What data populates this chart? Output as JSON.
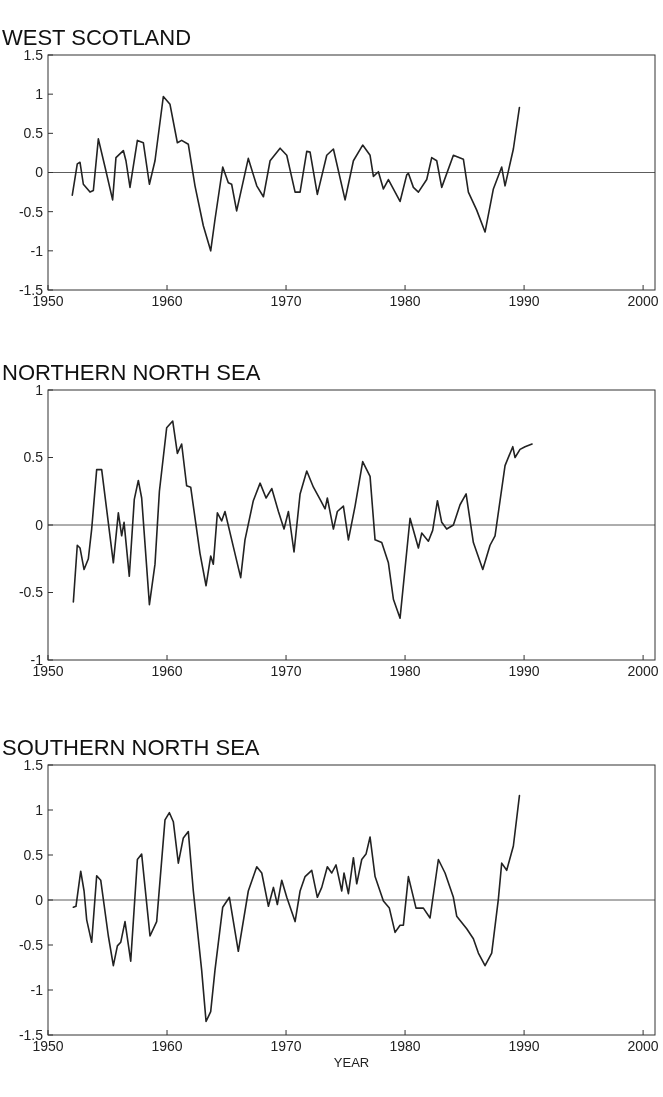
{
  "chart_data": [
    {
      "type": "line",
      "title": "WEST SCOTLAND",
      "xlim": [
        1950,
        2001
      ],
      "xticks": [
        1950,
        1960,
        1970,
        1980,
        1990,
        2000
      ],
      "ylim": [
        -1.5,
        1.5
      ],
      "yticks": [
        -1.5,
        -1,
        -0.5,
        0,
        0.5,
        1,
        1.5
      ],
      "ref_lines": [
        {
          "axis": "y",
          "value": 0
        }
      ],
      "x": [
        1952.04,
        1952.46,
        1952.69,
        1952.97,
        1953.53,
        1953.81,
        1954.23,
        1954.79,
        1955.43,
        1955.71,
        1956.33,
        1956.55,
        1956.89,
        1957.51,
        1958.01,
        1958.52,
        1958.99,
        1959.69,
        1960.25,
        1960.87,
        1961.23,
        1961.79,
        1962.35,
        1963.05,
        1963.67,
        1964.03,
        1964.68,
        1965.15,
        1965.43,
        1965.85,
        1966.83,
        1967.54,
        1968.1,
        1968.66,
        1969.5,
        1970.06,
        1970.76,
        1971.18,
        1971.74,
        1972.02,
        1972.63,
        1973.42,
        1973.98,
        1974.96,
        1975.66,
        1976.44,
        1977.06,
        1977.34,
        1977.76,
        1978.18,
        1978.6,
        1979.58,
        1980.14,
        1980.28,
        1980.7,
        1981.12,
        1981.82,
        1982.24,
        1982.66,
        1983.08,
        1984.06,
        1984.9,
        1985.32,
        1986.02,
        1986.72,
        1987.42,
        1988.12,
        1988.4,
        1989.1,
        1989.61
      ],
      "series": [
        {
          "color": "#222222",
          "values": [
            -0.29,
            0.11,
            0.13,
            -0.15,
            -0.25,
            -0.23,
            0.43,
            0.07,
            -0.35,
            0.19,
            0.28,
            0.15,
            -0.19,
            0.41,
            0.38,
            -0.15,
            0.15,
            0.97,
            0.87,
            0.38,
            0.41,
            0.36,
            -0.17,
            -0.68,
            -1.0,
            -0.6,
            0.07,
            -0.13,
            -0.15,
            -0.49,
            0.18,
            -0.17,
            -0.31,
            0.15,
            0.31,
            0.22,
            -0.25,
            -0.25,
            0.27,
            0.26,
            -0.28,
            0.22,
            0.3,
            -0.35,
            0.15,
            0.35,
            0.22,
            -0.05,
            0.01,
            -0.21,
            -0.09,
            -0.37,
            -0.03,
            -0.01,
            -0.19,
            -0.25,
            -0.09,
            0.19,
            0.15,
            -0.19,
            0.22,
            0.17,
            -0.25,
            -0.48,
            -0.76,
            -0.21,
            0.07,
            -0.17,
            0.3,
            0.83
          ]
        }
      ]
    },
    {
      "type": "line",
      "title": "NORTHERN NORTH SEA",
      "xlim": [
        1950,
        2001
      ],
      "xticks": [
        1950,
        1960,
        1970,
        1980,
        1990,
        2000
      ],
      "ylim": [
        -1,
        1
      ],
      "yticks": [
        -1,
        -0.5,
        0,
        0.5,
        1
      ],
      "ref_lines": [
        {
          "axis": "y",
          "value": 0
        }
      ],
      "x": [
        1952.13,
        1952.46,
        1952.69,
        1953.03,
        1953.39,
        1953.67,
        1954.09,
        1954.51,
        1955.49,
        1955.91,
        1956.19,
        1956.39,
        1956.83,
        1957.25,
        1957.59,
        1957.87,
        1958.52,
        1958.99,
        1959.36,
        1959.97,
        1960.48,
        1960.87,
        1961.23,
        1961.65,
        1961.99,
        1962.77,
        1963.28,
        1963.67,
        1963.89,
        1964.23,
        1964.59,
        1964.87,
        1965.57,
        1966.19,
        1966.55,
        1967.25,
        1967.82,
        1968.32,
        1968.8,
        1969.36,
        1969.83,
        1970.2,
        1970.67,
        1971.18,
        1971.74,
        1972.3,
        1972.86,
        1973.28,
        1973.47,
        1973.98,
        1974.31,
        1974.82,
        1975.24,
        1975.8,
        1976.44,
        1977.06,
        1977.48,
        1978.04,
        1978.6,
        1979.02,
        1979.58,
        1980.42,
        1981.12,
        1981.4,
        1981.96,
        1982.32,
        1982.72,
        1983.08,
        1983.5,
        1984.06,
        1984.62,
        1985.13,
        1985.74,
        1986.53,
        1987.14,
        1987.56,
        1988.4,
        1989.05,
        1989.24,
        1989.66,
        1990.08,
        1990.67
      ],
      "series": [
        {
          "color": "#222222",
          "values": [
            -0.57,
            -0.15,
            -0.17,
            -0.33,
            -0.25,
            -0.03,
            0.41,
            0.41,
            -0.28,
            0.09,
            -0.08,
            0.02,
            -0.38,
            0.19,
            0.33,
            0.2,
            -0.59,
            -0.29,
            0.25,
            0.72,
            0.77,
            0.53,
            0.6,
            0.29,
            0.28,
            -0.21,
            -0.45,
            -0.23,
            -0.29,
            0.09,
            0.03,
            0.1,
            -0.16,
            -0.39,
            -0.11,
            0.18,
            0.31,
            0.2,
            0.27,
            0.1,
            -0.03,
            0.1,
            -0.2,
            0.23,
            0.4,
            0.28,
            0.19,
            0.12,
            0.2,
            -0.03,
            0.1,
            0.14,
            -0.11,
            0.14,
            0.47,
            0.36,
            -0.11,
            -0.13,
            -0.28,
            -0.55,
            -0.69,
            0.05,
            -0.17,
            -0.06,
            -0.12,
            -0.04,
            0.18,
            0.02,
            -0.03,
            0,
            0.15,
            0.23,
            -0.13,
            -0.33,
            -0.15,
            -0.08,
            0.44,
            0.58,
            0.5,
            0.56,
            0.58,
            0.6
          ]
        }
      ]
    },
    {
      "type": "line",
      "title": "SOUTHERN NORTH SEA",
      "xlabel": "YEAR",
      "xlim": [
        1950,
        2001
      ],
      "xticks": [
        1950,
        1960,
        1970,
        1980,
        1990,
        2000
      ],
      "ylim": [
        -1.5,
        1.5
      ],
      "yticks": [
        -1.5,
        -1,
        -0.5,
        0,
        0.5,
        1,
        1.5
      ],
      "ref_lines": [
        {
          "axis": "y",
          "value": 0
        }
      ],
      "x": [
        1952.13,
        1952.35,
        1952.75,
        1953.03,
        1953.25,
        1953.67,
        1954.09,
        1954.43,
        1955.07,
        1955.49,
        1955.83,
        1956.11,
        1956.47,
        1956.95,
        1957.51,
        1957.87,
        1958.57,
        1959.13,
        1959.83,
        1960.2,
        1960.53,
        1960.95,
        1961.37,
        1961.79,
        1962.21,
        1962.91,
        1963.28,
        1963.67,
        1964.03,
        1964.68,
        1965.24,
        1965.99,
        1966.83,
        1967.54,
        1967.96,
        1968.52,
        1968.94,
        1969.27,
        1969.64,
        1970.06,
        1970.76,
        1971.18,
        1971.6,
        1972.16,
        1972.63,
        1973,
        1973.47,
        1973.84,
        1974.2,
        1974.68,
        1974.87,
        1975.24,
        1975.66,
        1975.94,
        1976.36,
        1976.72,
        1977.06,
        1977.48,
        1978.18,
        1978.68,
        1979.16,
        1979.58,
        1979.86,
        1980.28,
        1980.92,
        1981.54,
        1982.1,
        1982.8,
        1983.36,
        1984.06,
        1984.34,
        1985.18,
        1985.74,
        1986.16,
        1986.72,
        1987.28,
        1987.84,
        1988.12,
        1988.54,
        1989.1,
        1989.61
      ],
      "series": [
        {
          "color": "#222222",
          "values": [
            -0.08,
            -0.07,
            0.32,
            0.1,
            -0.22,
            -0.47,
            0.27,
            0.22,
            -0.4,
            -0.73,
            -0.51,
            -0.47,
            -0.24,
            -0.68,
            0.45,
            0.51,
            -0.4,
            -0.24,
            0.89,
            0.97,
            0.87,
            0.41,
            0.69,
            0.76,
            0.1,
            -0.78,
            -1.35,
            -1.24,
            -0.78,
            -0.08,
            0.03,
            -0.57,
            0.1,
            0.37,
            0.3,
            -0.07,
            0.14,
            -0.05,
            0.22,
            0.03,
            -0.24,
            0.1,
            0.26,
            0.33,
            0.03,
            0.14,
            0.37,
            0.3,
            0.39,
            0.1,
            0.3,
            0.07,
            0.47,
            0.18,
            0.45,
            0.51,
            0.7,
            0.26,
            -0.01,
            -0.09,
            -0.36,
            -0.28,
            -0.28,
            0.26,
            -0.09,
            -0.09,
            -0.2,
            0.45,
            0.3,
            0.03,
            -0.18,
            -0.32,
            -0.43,
            -0.59,
            -0.73,
            -0.59,
            0.01,
            0.41,
            0.33,
            0.6,
            1.16
          ]
        }
      ]
    }
  ]
}
